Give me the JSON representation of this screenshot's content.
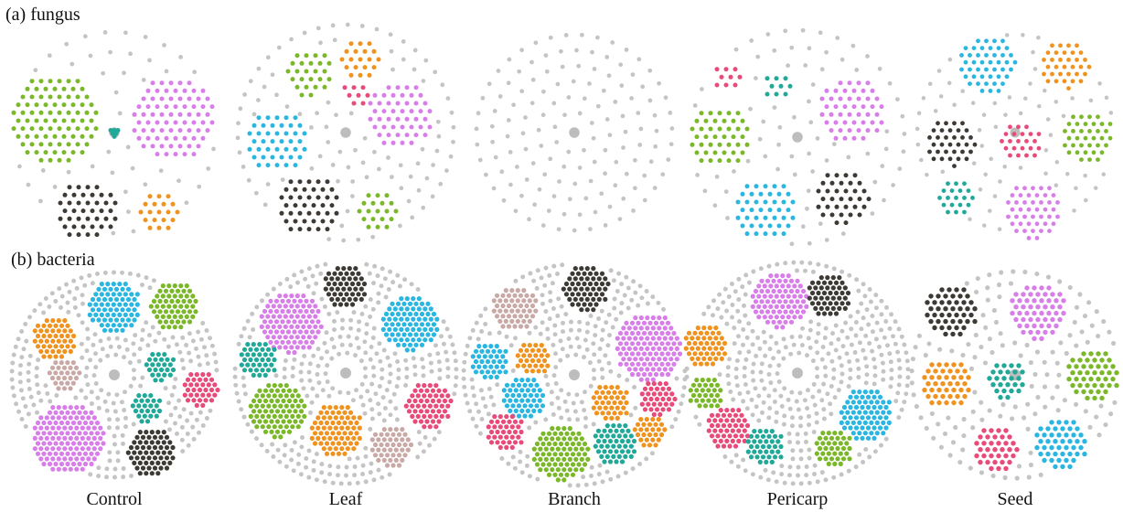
{
  "panels": {
    "a": "(a) fungus",
    "b": "(b) bacteria"
  },
  "columns": [
    "Control",
    "Leaf",
    "Branch",
    "Pericarp",
    "Seed"
  ]
}
